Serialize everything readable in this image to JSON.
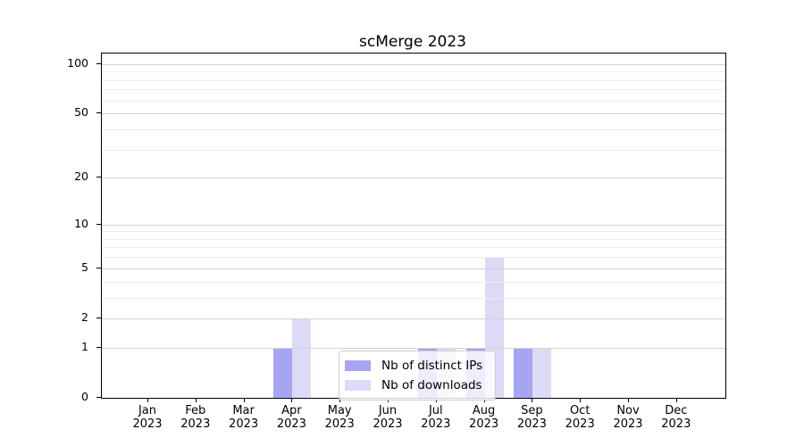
{
  "chart_data": {
    "type": "bar",
    "title": "scMerge 2023",
    "categories": [
      "Jan",
      "Feb",
      "Mar",
      "Apr",
      "May",
      "Jun",
      "Jul",
      "Aug",
      "Sep",
      "Oct",
      "Nov",
      "Dec"
    ],
    "year": "2023",
    "series": [
      {
        "name": "Nb of distinct IPs",
        "color": "#a5a5f2",
        "values": [
          0,
          0,
          0,
          1,
          0,
          0,
          1,
          1,
          1,
          0,
          0,
          0
        ]
      },
      {
        "name": "Nb of downloads",
        "color": "#dbdbf8",
        "values": [
          0,
          0,
          0,
          2,
          0,
          0,
          1,
          6,
          1,
          0,
          0,
          0
        ]
      }
    ],
    "y_axis": {
      "scale": "log1p",
      "ticks": [
        0,
        1,
        2,
        5,
        10,
        20,
        50,
        100
      ],
      "minor_gridlines": [
        3,
        4,
        6,
        7,
        8,
        9,
        30,
        40,
        60,
        70,
        80,
        90
      ],
      "ylim": [
        0,
        116
      ]
    },
    "x_axis": {
      "label_line2": "2023"
    },
    "grid": "horizontal",
    "legend": {
      "position": "bottom-center"
    },
    "colors": {
      "major_grid": "#d2d2d2",
      "minor_grid": "#ececec",
      "spine": "#000000",
      "background": "#ffffff"
    }
  }
}
